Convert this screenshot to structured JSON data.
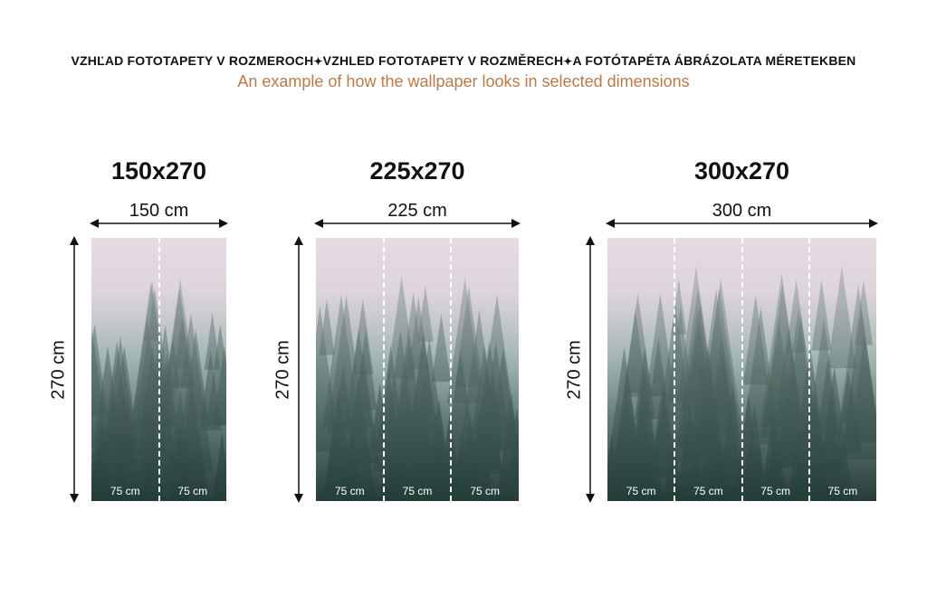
{
  "header": {
    "languages": [
      "VZHĽAD FOTOTAPETY V ROZMEROCH",
      "VZHLED FOTOTAPETY V ROZMĚRECH",
      "A FOTÓTAPÉTA ÁBRÁZOLATA MÉRETEKBEN"
    ],
    "separator_icon": "sparkle-icon",
    "subtitle": "An example of how the wallpaper looks in selected dimensions",
    "subtitle_color": "#b97a4c"
  },
  "panels": [
    {
      "title": "150x270",
      "width_label": "150 cm",
      "height_label": "270 cm",
      "strips": [
        "75 cm",
        "75 cm"
      ]
    },
    {
      "title": "225x270",
      "width_label": "225 cm",
      "height_label": "270 cm",
      "strips": [
        "75 cm",
        "75 cm",
        "75 cm"
      ]
    },
    {
      "title": "300x270",
      "width_label": "300 cm",
      "height_label": "270 cm",
      "strips": [
        "75 cm",
        "75 cm",
        "75 cm",
        "75 cm"
      ]
    }
  ],
  "image_subject": "misty pine forest"
}
